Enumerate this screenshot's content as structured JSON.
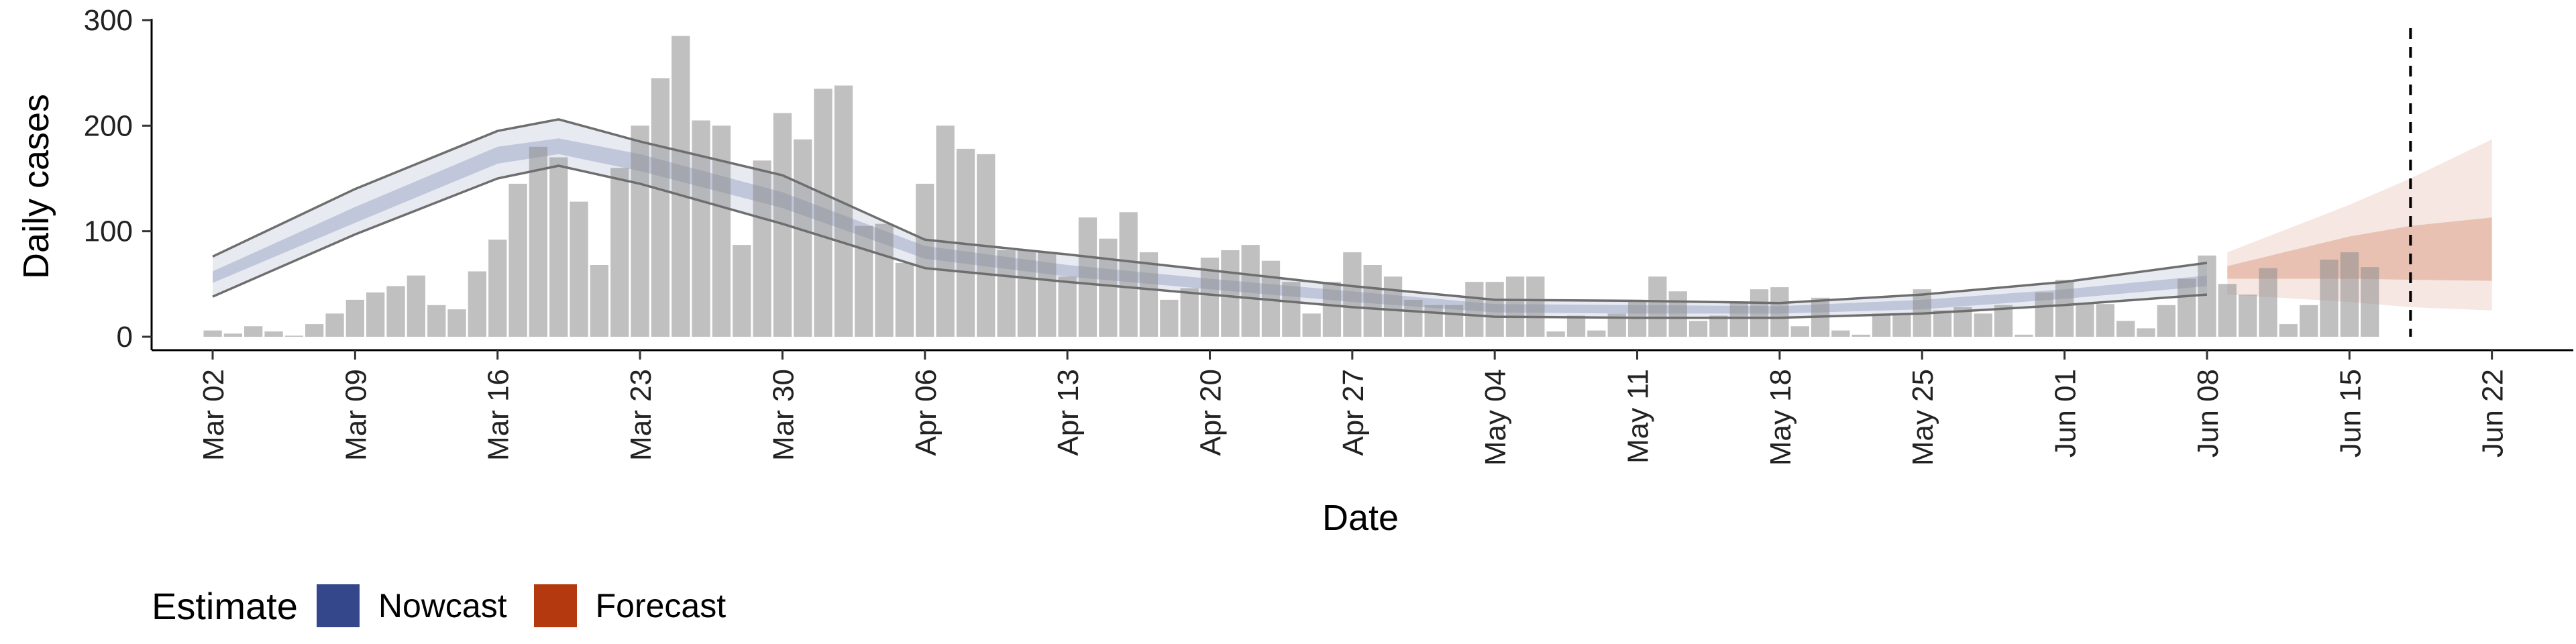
{
  "chart_data": {
    "type": "bar",
    "xlabel": "Date",
    "ylabel": "Daily cases",
    "x_axis": {
      "type": "date",
      "range": [
        "2020-02-28",
        "2020-06-26"
      ],
      "ticks": [
        "2020-03-02",
        "2020-03-09",
        "2020-03-16",
        "2020-03-23",
        "2020-03-30",
        "2020-04-06",
        "2020-04-13",
        "2020-04-20",
        "2020-04-27",
        "2020-05-04",
        "2020-05-11",
        "2020-05-18",
        "2020-05-25",
        "2020-06-01",
        "2020-06-08",
        "2020-06-15",
        "2020-06-22"
      ],
      "tick_labels": [
        "Mar 02",
        "Mar 09",
        "Mar 16",
        "Mar 23",
        "Mar 30",
        "Apr 06",
        "Apr 13",
        "Apr 20",
        "Apr 27",
        "May 04",
        "May 11",
        "May 18",
        "May 25",
        "Jun 01",
        "Jun 08",
        "Jun 15",
        "Jun 22"
      ]
    },
    "y_axis": {
      "range": [
        0,
        300
      ],
      "ticks": [
        0,
        100,
        200,
        300
      ]
    },
    "grid": false,
    "legend_position": "bottom-left",
    "reference_line": {
      "date": "2020-06-18",
      "style": "dashed"
    },
    "bars": {
      "start": "2020-03-02",
      "values": [
        6,
        3,
        10,
        5,
        1,
        12,
        22,
        35,
        42,
        48,
        58,
        30,
        26,
        62,
        92,
        145,
        180,
        170,
        128,
        68,
        160,
        200,
        245,
        285,
        205,
        200,
        87,
        167,
        212,
        187,
        235,
        238,
        105,
        107,
        70,
        145,
        200,
        178,
        173,
        82,
        82,
        80,
        57,
        113,
        93,
        118,
        80,
        35,
        46,
        75,
        82,
        87,
        72,
        52,
        22,
        52,
        80,
        68,
        57,
        35,
        30,
        30,
        52,
        52,
        57,
        57,
        5,
        20,
        6,
        22,
        35,
        57,
        43,
        15,
        20,
        32,
        45,
        47,
        10,
        37,
        6,
        2,
        22,
        22,
        45,
        25,
        28,
        22,
        30,
        2,
        42,
        54,
        32,
        31,
        15,
        8,
        30,
        55,
        77,
        50,
        40,
        65,
        12,
        30,
        73,
        80,
        66
      ]
    },
    "series": [
      {
        "name": "Nowcast",
        "color": "#3a4f8c",
        "x": [
          "2020-03-02",
          "2020-03-09",
          "2020-03-16",
          "2020-03-19",
          "2020-03-23",
          "2020-03-30",
          "2020-04-06",
          "2020-04-13",
          "2020-04-20",
          "2020-04-27",
          "2020-05-04",
          "2020-05-11",
          "2020-05-18",
          "2020-05-25",
          "2020-06-01",
          "2020-06-08"
        ],
        "median": [
          56,
          115,
          172,
          180,
          165,
          130,
          80,
          62,
          50,
          38,
          27,
          26,
          25,
          30,
          40,
          53
        ],
        "inner_lower": [
          51,
          108,
          164,
          173,
          157,
          122,
          74,
          57,
          45,
          33,
          23,
          22,
          22,
          26,
          36,
          48
        ],
        "inner_upper": [
          62,
          123,
          180,
          188,
          173,
          137,
          86,
          68,
          55,
          43,
          31,
          30,
          29,
          35,
          45,
          58
        ],
        "outer_lower": [
          38,
          97,
          150,
          162,
          145,
          107,
          65,
          52,
          40,
          28,
          19,
          18,
          18,
          22,
          30,
          40
        ],
        "outer_upper": [
          76,
          140,
          195,
          206,
          185,
          153,
          92,
          78,
          63,
          48,
          35,
          34,
          32,
          40,
          52,
          70
        ]
      },
      {
        "name": "Forecast",
        "color": "#b83a0e",
        "x": [
          "2020-06-09",
          "2020-06-15",
          "2020-06-18",
          "2020-06-22"
        ],
        "median": [
          60,
          72,
          80,
          90
        ],
        "inner_lower": [
          55,
          55,
          54,
          53
        ],
        "inner_upper": [
          67,
          95,
          105,
          113
        ],
        "outer_lower": [
          40,
          33,
          28,
          25
        ],
        "outer_upper": [
          80,
          125,
          150,
          187
        ]
      }
    ]
  },
  "legend": {
    "title": "Estimate",
    "items": [
      {
        "label": "Nowcast",
        "color": "#34478a"
      },
      {
        "label": "Forecast",
        "color": "#b5390e"
      }
    ]
  }
}
